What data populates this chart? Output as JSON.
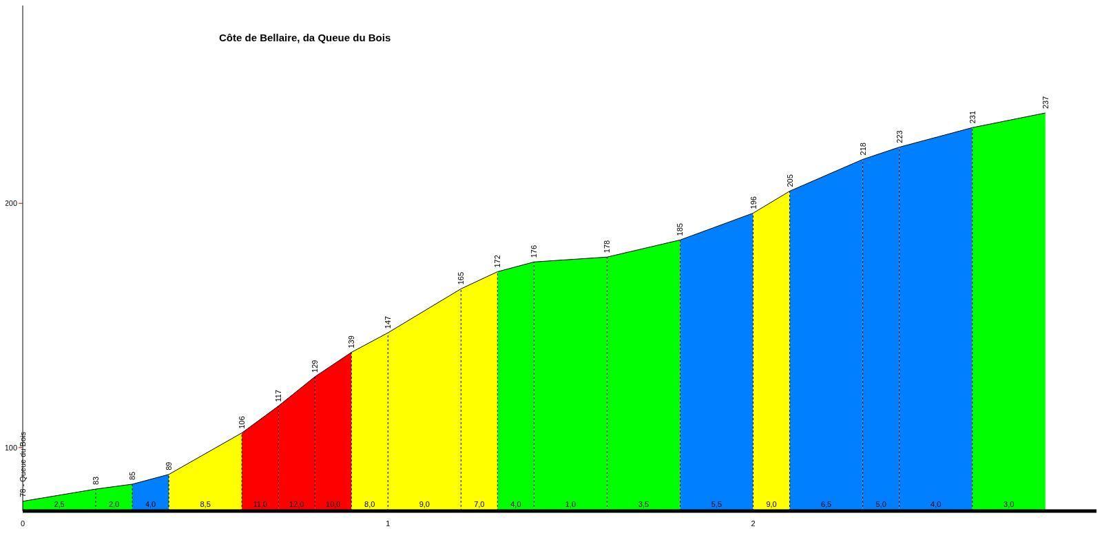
{
  "chart_data": {
    "type": "area",
    "title": "Côte de Bellaire, da Queue du Bois",
    "series": [
      {
        "color": "#00ff00",
        "x": [
          0,
          0.2
        ],
        "values": [
          78,
          83
        ],
        "value_labels": [
          "78 - Queue du Bois",
          null
        ]
      },
      {
        "color": "#00ff00",
        "x": [
          0.2,
          0.3
        ],
        "values": [
          83,
          85
        ],
        "value_labels": [
          "83",
          null
        ]
      },
      {
        "color": "#0080ff",
        "x": [
          0.3,
          0.4
        ],
        "values": [
          85,
          89
        ],
        "value_labels": [
          "85",
          null
        ]
      },
      {
        "color": "#ffff00",
        "x": [
          0.4,
          0.6
        ],
        "values": [
          89,
          106
        ],
        "value_labels": [
          "89",
          null
        ]
      },
      {
        "color": "#ff0000",
        "x": [
          0.6,
          0.7
        ],
        "values": [
          106,
          117
        ],
        "value_labels": [
          "106",
          null
        ]
      },
      {
        "color": "#ff0000",
        "x": [
          0.7,
          0.8
        ],
        "values": [
          117,
          129
        ],
        "value_labels": [
          "117",
          null
        ]
      },
      {
        "color": "#ff0000",
        "x": [
          0.8,
          0.9
        ],
        "values": [
          129,
          139
        ],
        "value_labels": [
          "129",
          null
        ]
      },
      {
        "color": "#ffff00",
        "x": [
          0.9,
          1.0
        ],
        "values": [
          139,
          147
        ],
        "value_labels": [
          "139",
          null
        ]
      },
      {
        "color": "#ffff00",
        "x": [
          1.0,
          1.2
        ],
        "values": [
          147,
          165
        ],
        "value_labels": [
          "147",
          null
        ]
      },
      {
        "color": "#ffff00",
        "x": [
          1.2,
          1.3
        ],
        "values": [
          165,
          172
        ],
        "value_labels": [
          "165",
          null
        ]
      },
      {
        "color": "#00ff00",
        "x": [
          1.3,
          1.4
        ],
        "values": [
          172,
          176
        ],
        "value_labels": [
          "172",
          null
        ]
      },
      {
        "color": "#00ff00",
        "x": [
          1.4,
          1.6
        ],
        "values": [
          176,
          178
        ],
        "value_labels": [
          "176",
          null
        ]
      },
      {
        "color": "#00ff00",
        "x": [
          1.6,
          1.8
        ],
        "values": [
          178,
          185
        ],
        "value_labels": [
          "178",
          null
        ]
      },
      {
        "color": "#0080ff",
        "x": [
          1.8,
          2.0
        ],
        "values": [
          185,
          196
        ],
        "value_labels": [
          "185",
          null
        ]
      },
      {
        "color": "#ffff00",
        "x": [
          2.0,
          2.1
        ],
        "values": [
          196,
          205
        ],
        "value_labels": [
          "196",
          null
        ]
      },
      {
        "color": "#0080ff",
        "x": [
          2.1,
          2.3
        ],
        "values": [
          205,
          218
        ],
        "value_labels": [
          "205",
          null
        ]
      },
      {
        "color": "#0080ff",
        "x": [
          2.3,
          2.4
        ],
        "values": [
          218,
          223
        ],
        "value_labels": [
          "218",
          null
        ]
      },
      {
        "color": "#0080ff",
        "x": [
          2.4,
          2.6
        ],
        "values": [
          223,
          231
        ],
        "value_labels": [
          "223",
          null
        ]
      },
      {
        "color": "#00ff00",
        "x": [
          2.6,
          2.8
        ],
        "values": [
          231,
          237
        ],
        "value_labels": [
          "231",
          "237"
        ]
      }
    ],
    "annotations": [
      "2,5",
      "2,0",
      "4,0",
      "8,5",
      "11,0",
      "12,0",
      "10,0",
      "8,0",
      "9,0",
      "7,0",
      "4,0",
      "1,0",
      "3,5",
      "5,5",
      "9,0",
      "6,5",
      "5,0",
      "4,0",
      "3,0"
    ],
    "xlim": [
      0,
      2.94
    ],
    "xticks": [
      0,
      1,
      2
    ],
    "ylim": [
      74,
      281
    ],
    "yticks": [
      100,
      200
    ],
    "grid": false,
    "legend": false
  }
}
